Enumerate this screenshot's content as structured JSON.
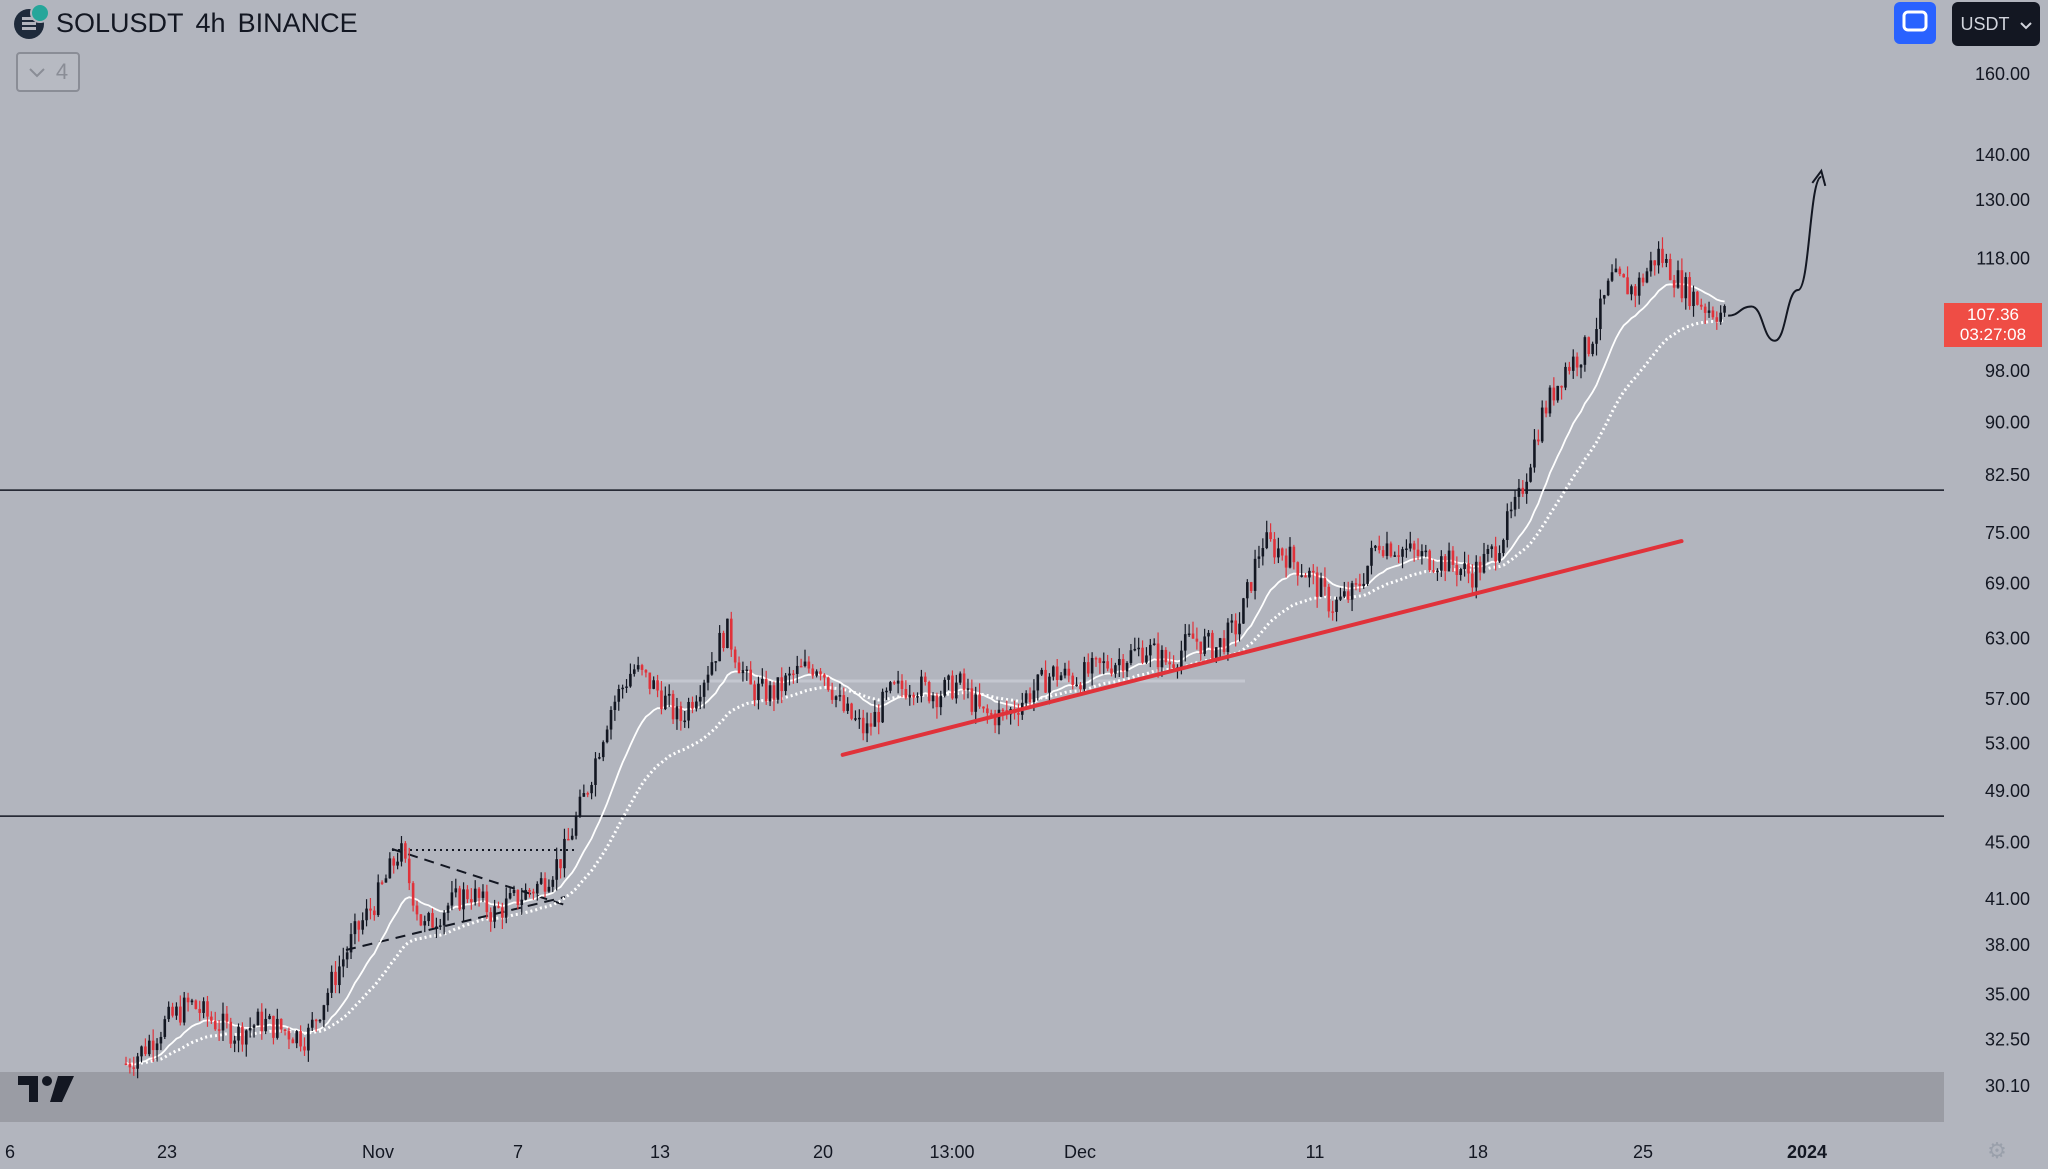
{
  "header": {
    "symbol": "SOLUSDT",
    "interval": "4h",
    "exchange": "BINANCE",
    "indicator_count": "4"
  },
  "toolbar": {
    "currency": "USDT",
    "screen_icon": "fullscreen-icon"
  },
  "last_price": {
    "price": "107.36",
    "countdown": "03:27:08",
    "color": "#ef4d45"
  },
  "colors": {
    "background": "#b2b5be",
    "up_candle": "#131722",
    "down_candle": "#e0323a",
    "trendline": "#e0323a",
    "moving_average": "#ffffff",
    "horizontal_level": "#131722",
    "bottom_band": "#9a9ca4"
  },
  "chart_data": {
    "type": "candlestick",
    "title": "SOLUSDT 4h BINANCE",
    "scale": "log",
    "ylim": [
      29.0,
      165.0
    ],
    "y_ticks": [
      "160.00",
      "140.00",
      "130.00",
      "118.00",
      "98.00",
      "90.00",
      "82.50",
      "75.00",
      "69.00",
      "63.00",
      "57.00",
      "53.00",
      "49.00",
      "45.00",
      "41.00",
      "38.00",
      "35.00",
      "32.50",
      "30.10"
    ],
    "x_ticks": [
      "6",
      "23",
      "Nov",
      "7",
      "13",
      "20",
      "13:00",
      "Dec",
      "11",
      "18",
      "25",
      "2024"
    ],
    "price_path": [
      [
        "2023-10-20",
        29.0
      ],
      [
        "2023-10-21",
        31.0
      ],
      [
        "2023-10-22",
        32.0
      ],
      [
        "2023-10-23",
        33.5
      ],
      [
        "2023-10-24",
        34.5
      ],
      [
        "2023-10-25",
        33.5
      ],
      [
        "2023-10-26",
        32.8
      ],
      [
        "2023-10-27",
        33.5
      ],
      [
        "2023-10-28",
        33.0
      ],
      [
        "2023-10-29",
        32.6
      ],
      [
        "2023-10-30",
        35.5
      ],
      [
        "2023-10-31",
        38.5
      ],
      [
        "2023-11-01",
        41.0
      ],
      [
        "2023-11-02",
        44.5
      ],
      [
        "2023-11-03",
        39.0
      ],
      [
        "2023-11-04",
        40.5
      ],
      [
        "2023-11-05",
        41.5
      ],
      [
        "2023-11-06",
        40.0
      ],
      [
        "2023-11-07",
        41.0
      ],
      [
        "2023-11-08",
        42.0
      ],
      [
        "2023-11-09",
        44.0
      ],
      [
        "2023-11-10",
        49.0
      ],
      [
        "2023-11-11",
        56.0
      ],
      [
        "2023-11-12",
        60.0
      ],
      [
        "2023-11-13",
        58.0
      ],
      [
        "2023-11-14",
        55.0
      ],
      [
        "2023-11-15",
        59.0
      ],
      [
        "2023-11-16",
        64.0
      ],
      [
        "2023-11-17",
        58.0
      ],
      [
        "2023-11-18",
        57.5
      ],
      [
        "2023-11-19",
        59.5
      ],
      [
        "2023-11-20",
        60.5
      ],
      [
        "2023-11-21",
        56.0
      ],
      [
        "2023-11-22",
        54.0
      ],
      [
        "2023-11-23",
        57.5
      ],
      [
        "2023-11-24",
        58.5
      ],
      [
        "2023-11-25",
        57.5
      ],
      [
        "2023-11-26",
        58.5
      ],
      [
        "2023-11-27",
        55.5
      ],
      [
        "2023-11-28",
        55.5
      ],
      [
        "2023-11-29",
        57.5
      ],
      [
        "2023-11-30",
        59.5
      ],
      [
        "2023-12-01",
        59.0
      ],
      [
        "2023-12-02",
        60.0
      ],
      [
        "2023-12-03",
        61.0
      ],
      [
        "2023-12-04",
        62.0
      ],
      [
        "2023-12-05",
        60.5
      ],
      [
        "2023-12-06",
        63.0
      ],
      [
        "2023-12-07",
        62.0
      ],
      [
        "2023-12-08",
        64.5
      ],
      [
        "2023-12-09",
        74.0
      ],
      [
        "2023-12-10",
        72.5
      ],
      [
        "2023-12-11",
        70.0
      ],
      [
        "2023-12-12",
        66.5
      ],
      [
        "2023-12-13",
        68.0
      ],
      [
        "2023-12-14",
        74.0
      ],
      [
        "2023-12-15",
        73.0
      ],
      [
        "2023-12-16",
        72.0
      ],
      [
        "2023-12-17",
        71.5
      ],
      [
        "2023-12-18",
        70.0
      ],
      [
        "2023-12-19",
        73.0
      ],
      [
        "2023-12-20",
        79.0
      ],
      [
        "2023-12-21",
        91.0
      ],
      [
        "2023-12-22",
        98.5
      ],
      [
        "2023-12-23",
        102.0
      ],
      [
        "2023-12-24",
        114.0
      ],
      [
        "2023-12-25",
        112.0
      ],
      [
        "2023-12-26",
        119.0
      ],
      [
        "2023-12-27",
        113.0
      ],
      [
        "2023-12-28",
        109.0
      ],
      [
        "2023-12-29",
        107.36
      ]
    ],
    "levels": [
      80.5,
      47.0
    ],
    "support_trendline": [
      [
        "2023-11-21",
        52.0
      ],
      [
        "2023-12-27",
        74.0
      ]
    ],
    "projection_path": [
      [
        "2023-12-29",
        107.36
      ],
      [
        "2023-12-30",
        109.0
      ],
      [
        "2023-12-31",
        103.0
      ],
      [
        "2024-01-01",
        112.0
      ],
      [
        "2024-01-02",
        135.0
      ]
    ]
  }
}
